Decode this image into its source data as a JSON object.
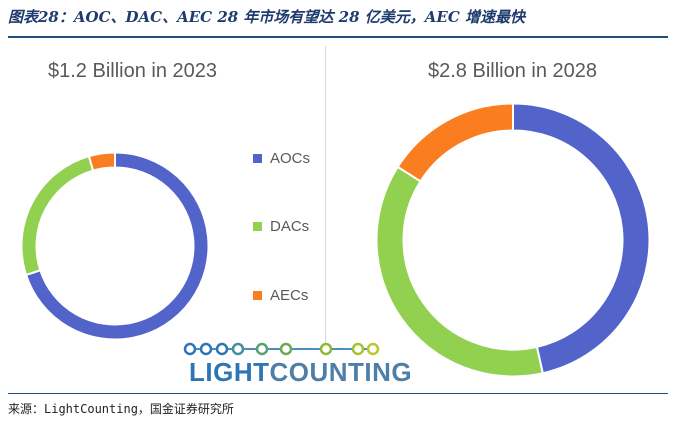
{
  "figure_title": "图表28：AOC、DAC、AEC 28 年市场有望达 28 亿美元，AEC 增速最快",
  "source_text": "来源：LightCounting，国金证券研究所",
  "logo": {
    "text_a": "LIGHT",
    "text_b": "COUNTING"
  },
  "colors": {
    "AOCs": "#5264c9",
    "DACs": "#92d050",
    "AECs": "#fa7d20"
  },
  "chart_data": [
    {
      "type": "pie",
      "subtype": "donut",
      "title": "$1.2 Billion in 2023",
      "categories": [
        "AOCs",
        "DACs",
        "AECs"
      ],
      "values": [
        70,
        25.5,
        4.5
      ],
      "unit": "%"
    },
    {
      "type": "pie",
      "subtype": "donut",
      "title": "$2.8 Billion in 2028",
      "categories": [
        "AOCs",
        "DACs",
        "AECs"
      ],
      "values": [
        46.5,
        37.5,
        16
      ],
      "unit": "%"
    }
  ],
  "legend": [
    "AOCs",
    "DACs",
    "AECs"
  ]
}
